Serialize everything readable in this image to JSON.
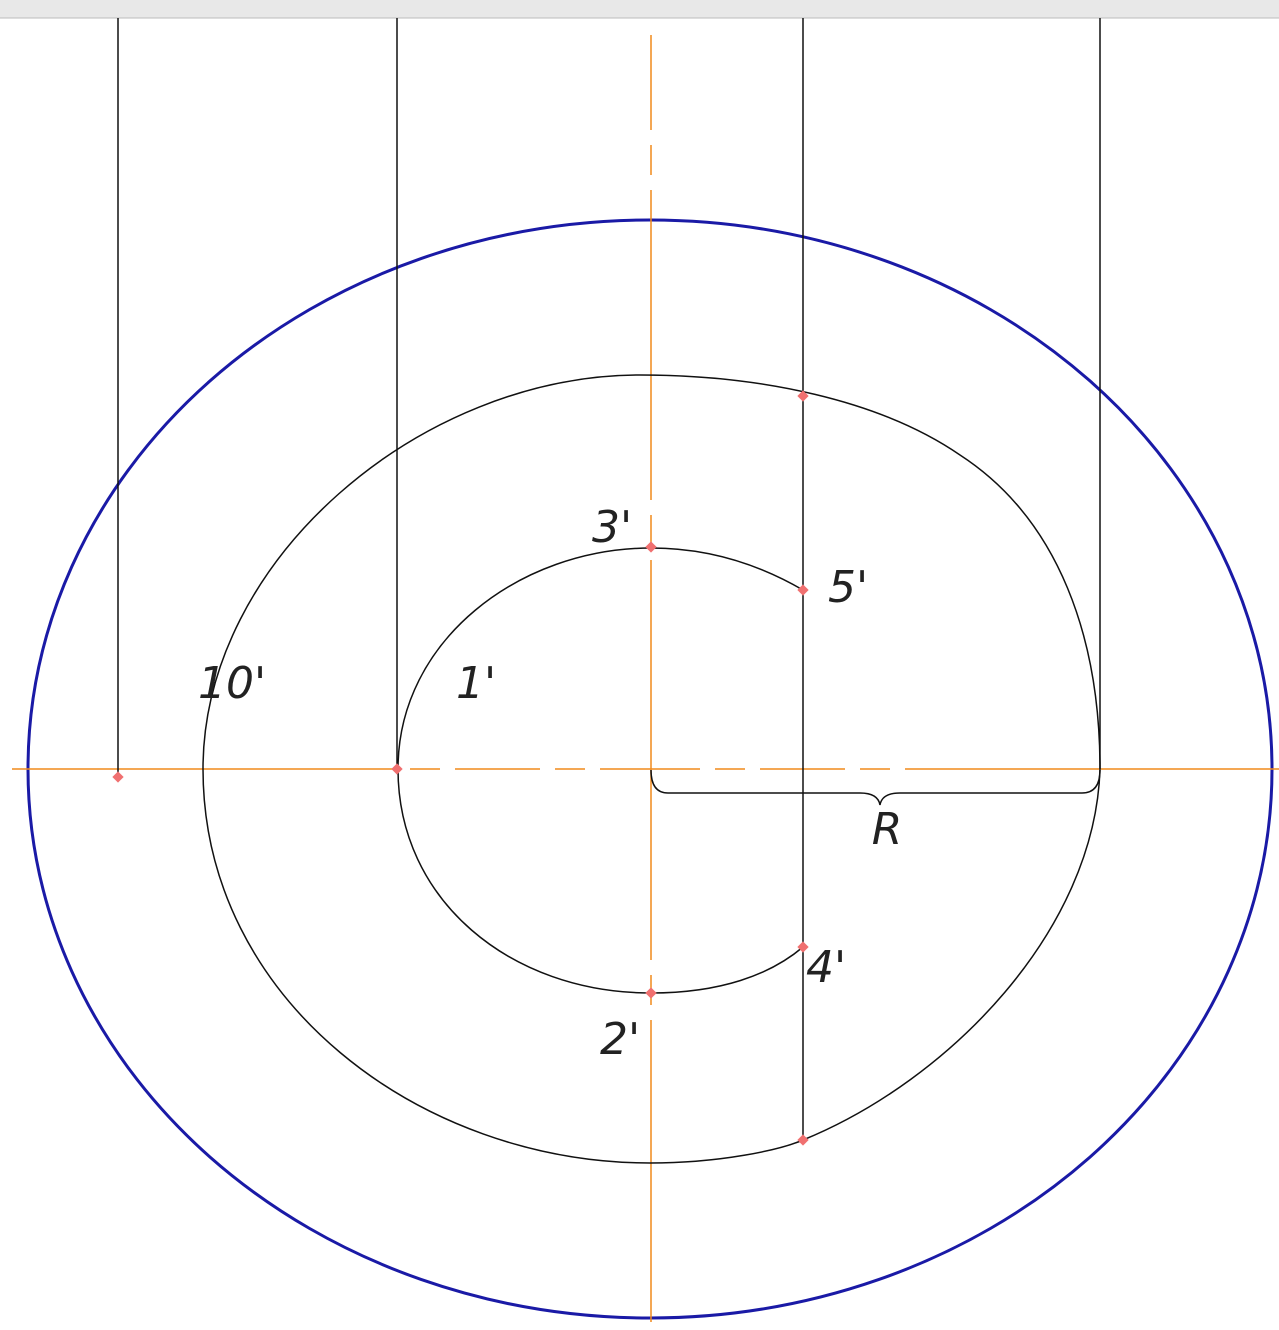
{
  "labels": [
    "3'",
    "5'",
    "10'",
    "1'",
    "R",
    "4'",
    "2'"
  ]
}
